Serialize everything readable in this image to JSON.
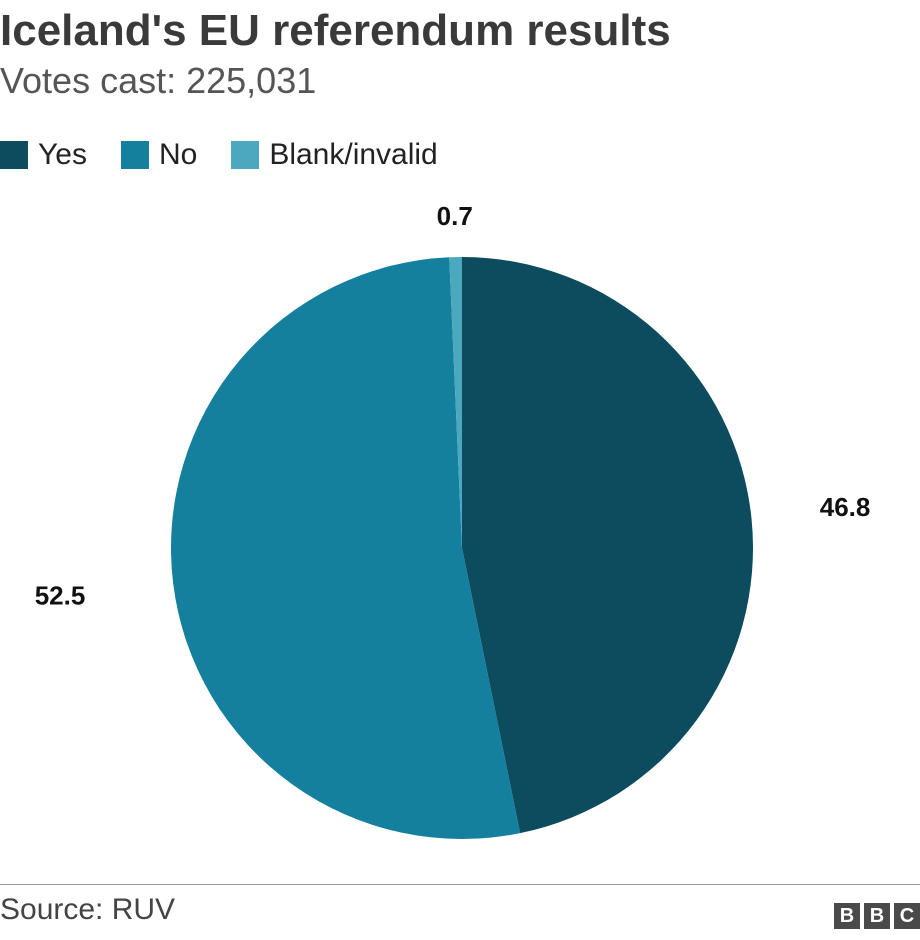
{
  "header": {
    "title": "Iceland's EU referendum results",
    "subtitle": "Votes cast: 225,031"
  },
  "colors": {
    "yes": "#0c4c5e",
    "no": "#157f9e",
    "blank": "#4ba8bf"
  },
  "chart_data": {
    "type": "pie",
    "title": "Iceland's EU referendum results",
    "subtitle": "Votes cast: 225,031",
    "legend_position": "top-left",
    "slices": [
      {
        "label": "Yes",
        "value": 46.8,
        "display": "46.8"
      },
      {
        "label": "No",
        "value": 52.5,
        "display": "52.5"
      },
      {
        "label": "Blank/invalid",
        "value": 0.7,
        "display": "0.7"
      }
    ]
  },
  "footer": {
    "source": "Source: RUV",
    "logo_letters": [
      "B",
      "B",
      "C"
    ]
  }
}
